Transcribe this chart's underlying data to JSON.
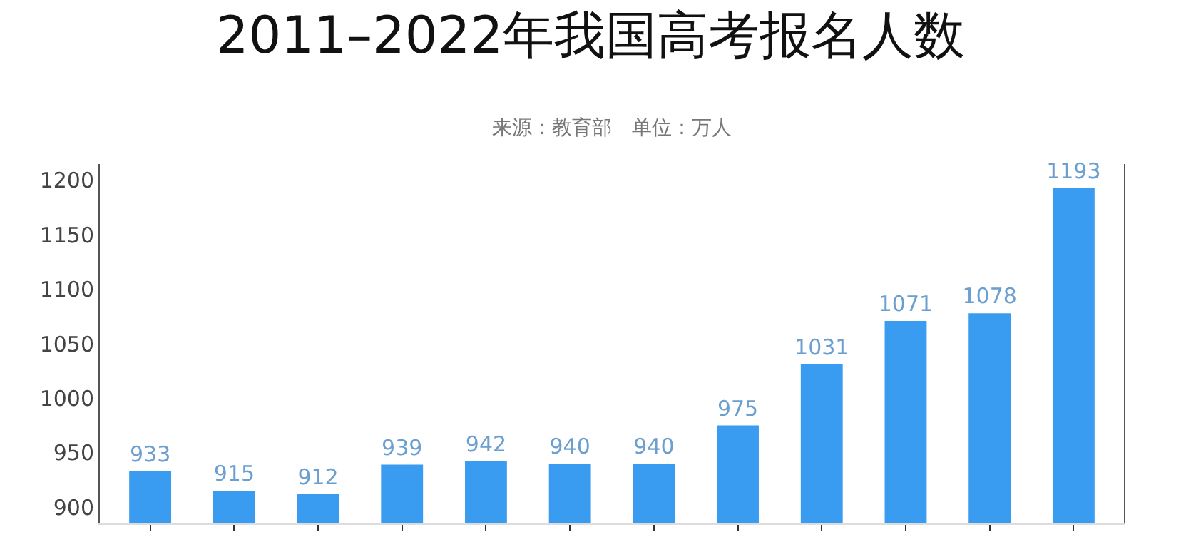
{
  "chart_data": {
    "type": "bar",
    "title": "2011–2022年我国高考报名人数",
    "subtitle": "来源：教育部　单位：万人",
    "categories": [
      null,
      null,
      null,
      null,
      null,
      null,
      null,
      null,
      null,
      null,
      null,
      null
    ],
    "values": [
      933,
      915,
      912,
      939,
      942,
      940,
      940,
      975,
      1031,
      1071,
      1078,
      1193
    ],
    "color": "#3a9cf0",
    "ylim": [
      885,
      1215
    ],
    "yticks": [
      900,
      950,
      1000,
      1050,
      1100,
      1150,
      1200
    ],
    "grid": false,
    "data_labels": true
  }
}
